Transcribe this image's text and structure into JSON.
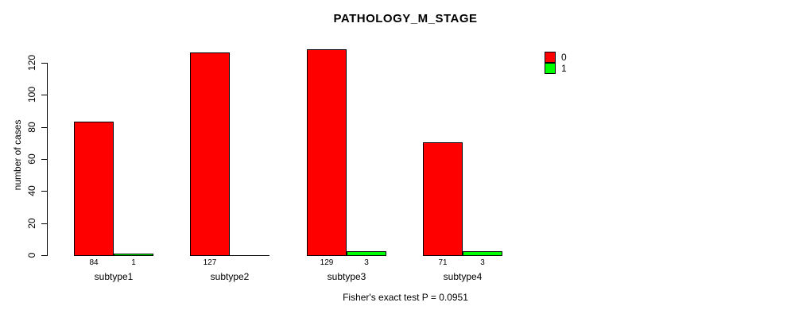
{
  "chart_data": {
    "type": "bar",
    "title": "PATHOLOGY_M_STAGE",
    "xlabel": "",
    "ylabel": "number of cases",
    "categories": [
      "subtype1",
      "subtype2",
      "subtype3",
      "subtype4"
    ],
    "series": [
      {
        "name": "0",
        "color": "#FF0000",
        "values": [
          84,
          127,
          129,
          71
        ]
      },
      {
        "name": "1",
        "color": "#00FF00",
        "values": [
          1,
          0,
          3,
          3
        ]
      }
    ],
    "bar_value_labels": {
      "show": true,
      "hide_zero": true
    },
    "ylim": [
      0,
      120
    ],
    "yticks": [
      0,
      20,
      40,
      60,
      80,
      100,
      120
    ],
    "grid": false,
    "legend_position": "top-right",
    "annotation": "Fisher's exact test P = 0.0951"
  }
}
